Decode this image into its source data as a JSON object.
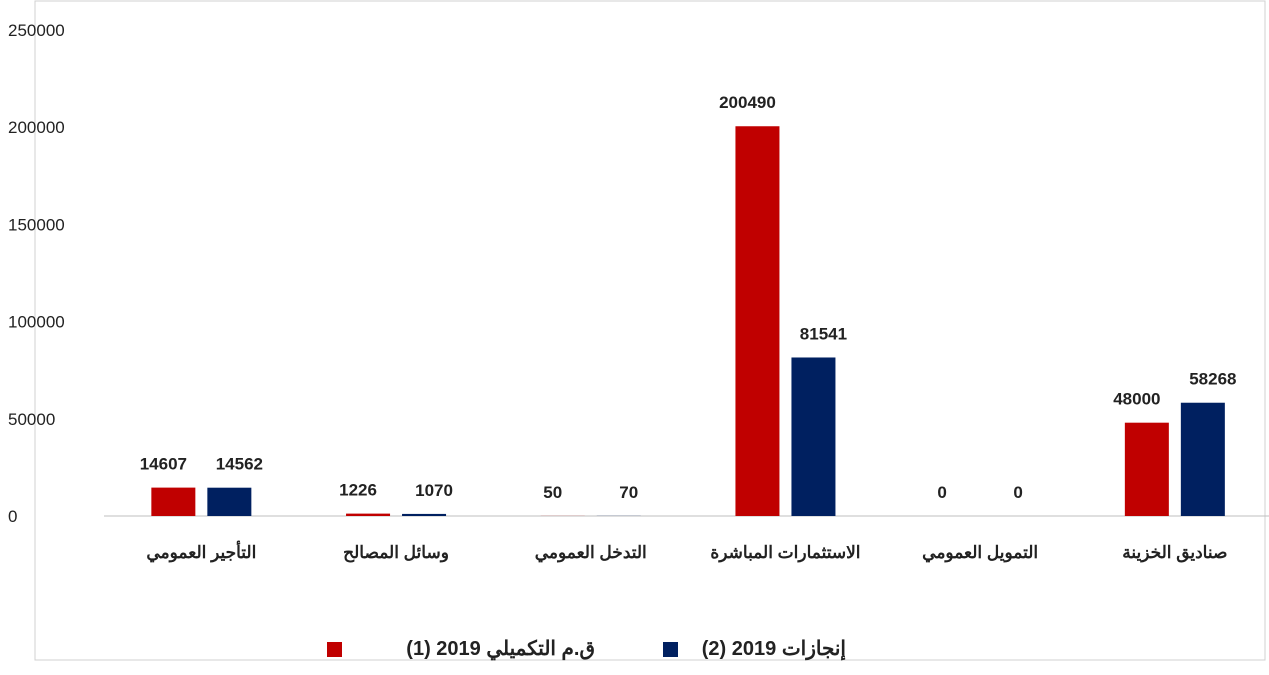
{
  "chart_data": {
    "type": "bar",
    "categories": [
      "التأجير العمومي",
      "وسائل المصالح",
      "التدخل العمومي",
      "الاستثمارات المباشرة",
      "التمويل العمومي",
      "صناديق الخزينة"
    ],
    "series": [
      {
        "name": "ق.م التكميلي 2019 (1)",
        "color": "#c00000",
        "values": [
          14607,
          1226,
          50,
          200490,
          0,
          48000
        ]
      },
      {
        "name": "إنجازات 2019 (2)",
        "color": "#002060",
        "values": [
          14562,
          1070,
          70,
          81541,
          0,
          58268
        ]
      }
    ],
    "ylim": [
      0,
      250000
    ],
    "yticks": [
      0,
      50000,
      100000,
      150000,
      200000,
      250000
    ],
    "grid": false
  }
}
